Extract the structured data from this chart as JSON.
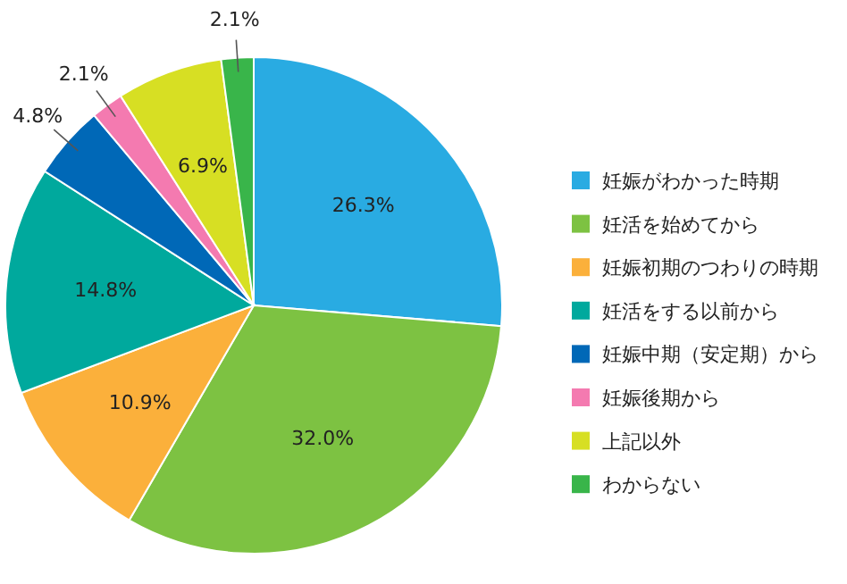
{
  "chart_data": {
    "type": "pie",
    "categories": [
      "妊娠がわかった時期",
      "妊活を始めてから",
      "妊娠初期のつわりの時期",
      "妊活をする以前から",
      "妊娠中期（安定期）から",
      "妊娠後期から",
      "上記以外",
      "わからない"
    ],
    "values": [
      26.3,
      32.0,
      10.9,
      14.8,
      4.8,
      2.1,
      6.9,
      2.1
    ],
    "colors": [
      "#29abe2",
      "#7dc242",
      "#fbb03b",
      "#00a99d",
      "#0068b7",
      "#f47ab0",
      "#d7df23",
      "#39b54a"
    ],
    "value_labels": [
      "26.3%",
      "32.0%",
      "10.9%",
      "14.8%",
      "4.8%",
      "2.1%",
      "6.9%",
      "2.1%"
    ],
    "legend": "right"
  }
}
